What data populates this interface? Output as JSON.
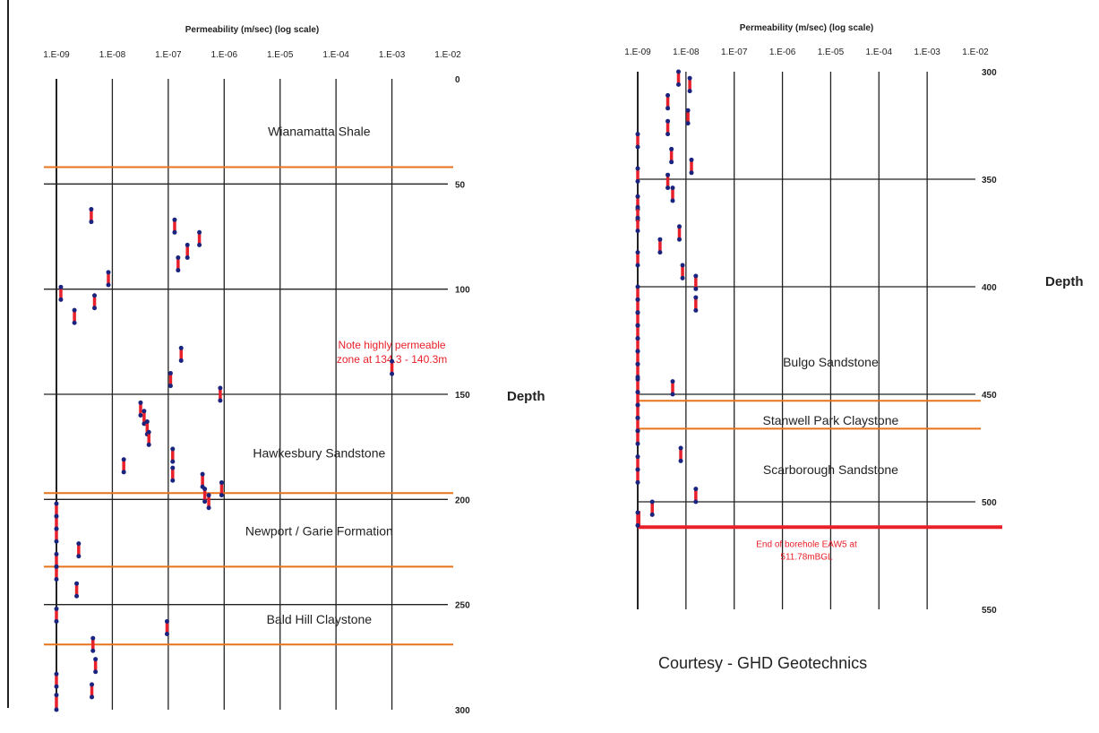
{
  "labels": {
    "depth_right": "Depth",
    "depth_left": "Depth",
    "credit": "Courtesy - GHD Geotechnics"
  },
  "colors": {
    "grid": "#222222",
    "boundary": "#e8731a",
    "test_bar": "#e8202a",
    "test_end": "#1a237e",
    "eoh": "#e8202a"
  },
  "chart_data": [
    {
      "type": "scatter",
      "panel": "left",
      "title": "Permeability (m/sec)   (log scale)",
      "x_scale": "log",
      "xlim": [
        1e-09,
        0.01
      ],
      "x_ticks": [
        "1.E-09",
        "1.E-08",
        "1.E-07",
        "1.E-06",
        "1.E-05",
        "1.E-04",
        "1.E-03",
        "1.E-02"
      ],
      "ylim": [
        0,
        300
      ],
      "y_inverted": true,
      "y_ticks": [
        0,
        50,
        100,
        150,
        200,
        250,
        300
      ],
      "grid": true,
      "y_grid": [
        50,
        100,
        150,
        200,
        250
      ],
      "formations": [
        {
          "name": "Wianamatta Shale",
          "label_depth": 25,
          "label_k": 5e-05
        },
        {
          "name": "Hawkesbury Sandstone",
          "label_depth": 178,
          "label_k": 5e-05
        },
        {
          "name": "Newport / Garie Formation",
          "label_depth": 215,
          "label_k": 5e-05
        },
        {
          "name": "Bald Hill Claystone",
          "label_depth": 257,
          "label_k": 5e-05
        }
      ],
      "boundaries": [
        42,
        197,
        232,
        269
      ],
      "annotation": {
        "lines": [
          "Note highly permeable",
          "zone at 134.3 - 140.3m"
        ],
        "k": 0.001,
        "depth": 118
      },
      "tests": [
        {
          "k": 4.2e-09,
          "top": 62,
          "bottom": 68
        },
        {
          "k": 1.3e-07,
          "top": 67,
          "bottom": 73
        },
        {
          "k": 3.6e-07,
          "top": 73,
          "bottom": 79
        },
        {
          "k": 2.2e-07,
          "top": 79,
          "bottom": 85
        },
        {
          "k": 1.5e-07,
          "top": 85,
          "bottom": 91
        },
        {
          "k": 8.5e-09,
          "top": 92,
          "bottom": 98
        },
        {
          "k": 1.2e-09,
          "top": 99,
          "bottom": 105
        },
        {
          "k": 4.8e-09,
          "top": 103,
          "bottom": 109
        },
        {
          "k": 2.1e-09,
          "top": 110,
          "bottom": 116
        },
        {
          "k": 1.7e-07,
          "top": 128,
          "bottom": 134
        },
        {
          "k": 0.001,
          "top": 134.3,
          "bottom": 140.3
        },
        {
          "k": 1.1e-07,
          "top": 140,
          "bottom": 146
        },
        {
          "k": 8.5e-07,
          "top": 147,
          "bottom": 153
        },
        {
          "k": 3.2e-08,
          "top": 154,
          "bottom": 160
        },
        {
          "k": 3.7e-08,
          "top": 158,
          "bottom": 164
        },
        {
          "k": 4.2e-08,
          "top": 163,
          "bottom": 169
        },
        {
          "k": 4.5e-08,
          "top": 168,
          "bottom": 174
        },
        {
          "k": 1.2e-07,
          "top": 176,
          "bottom": 182
        },
        {
          "k": 1.6e-08,
          "top": 181,
          "bottom": 187
        },
        {
          "k": 1.2e-07,
          "top": 185,
          "bottom": 191
        },
        {
          "k": 4.1e-07,
          "top": 188,
          "bottom": 194
        },
        {
          "k": 9e-07,
          "top": 192,
          "bottom": 198
        },
        {
          "k": 4.5e-07,
          "top": 195,
          "bottom": 201
        },
        {
          "k": 5.3e-07,
          "top": 198,
          "bottom": 204
        },
        {
          "k": 1e-09,
          "top": 202,
          "bottom": 208
        },
        {
          "k": 1e-09,
          "top": 208,
          "bottom": 214
        },
        {
          "k": 1e-09,
          "top": 214,
          "bottom": 220
        },
        {
          "k": 2.5e-09,
          "top": 221,
          "bottom": 227
        },
        {
          "k": 1e-09,
          "top": 226,
          "bottom": 232
        },
        {
          "k": 1e-09,
          "top": 232,
          "bottom": 238
        },
        {
          "k": 2.3e-09,
          "top": 240,
          "bottom": 246
        },
        {
          "k": 1e-09,
          "top": 252,
          "bottom": 258
        },
        {
          "k": 9.5e-08,
          "top": 258,
          "bottom": 264
        },
        {
          "k": 4.5e-09,
          "top": 266,
          "bottom": 272
        },
        {
          "k": 5e-09,
          "top": 276,
          "bottom": 282
        },
        {
          "k": 1e-09,
          "top": 283,
          "bottom": 289
        },
        {
          "k": 4.3e-09,
          "top": 288,
          "bottom": 294
        },
        {
          "k": 1e-09,
          "top": 293,
          "bottom": 300
        }
      ]
    },
    {
      "type": "scatter",
      "panel": "right",
      "title": "Permeability (m/sec)   (log scale)",
      "x_scale": "log",
      "xlim": [
        1e-09,
        0.01
      ],
      "x_ticks": [
        "1.E-09",
        "1.E-08",
        "1.E-07",
        "1.E-06",
        "1.E-05",
        "1.E-04",
        "1.E-03",
        "1.E-02"
      ],
      "ylim": [
        300,
        550
      ],
      "y_inverted": true,
      "y_ticks": [
        300,
        350,
        400,
        450,
        500,
        550
      ],
      "grid": true,
      "y_grid": [
        350,
        400,
        450,
        500
      ],
      "formations": [
        {
          "name": "Bulgo Sandstone",
          "label_depth": 435,
          "label_k": 1e-05
        },
        {
          "name": "Stanwell Park Claystone",
          "label_depth": 462,
          "label_k": 1e-05
        },
        {
          "name": "Scarborough Sandstone",
          "label_depth": 485,
          "label_k": 1e-05
        }
      ],
      "boundaries": [
        453,
        466
      ],
      "end_of_hole": {
        "depth": 511.78,
        "lines": [
          "End of borehole EAW5 at",
          "511.78mBGL"
        ]
      },
      "tests": [
        {
          "k": 7e-09,
          "top": 300,
          "bottom": 306
        },
        {
          "k": 1.2e-08,
          "top": 303,
          "bottom": 309
        },
        {
          "k": 4.2e-09,
          "top": 311,
          "bottom": 317
        },
        {
          "k": 1.1e-08,
          "top": 318,
          "bottom": 324
        },
        {
          "k": 4.2e-09,
          "top": 323,
          "bottom": 329
        },
        {
          "k": 1e-09,
          "top": 329,
          "bottom": 335
        },
        {
          "k": 5e-09,
          "top": 336,
          "bottom": 342
        },
        {
          "k": 1.3e-08,
          "top": 341,
          "bottom": 347
        },
        {
          "k": 1e-09,
          "top": 345,
          "bottom": 351
        },
        {
          "k": 4.2e-09,
          "top": 348,
          "bottom": 354
        },
        {
          "k": 5.3e-09,
          "top": 354,
          "bottom": 360
        },
        {
          "k": 1e-09,
          "top": 358,
          "bottom": 364
        },
        {
          "k": 1e-09,
          "top": 363,
          "bottom": 369
        },
        {
          "k": 1e-09,
          "top": 368,
          "bottom": 374
        },
        {
          "k": 7.3e-09,
          "top": 372,
          "bottom": 378
        },
        {
          "k": 2.9e-09,
          "top": 378,
          "bottom": 384
        },
        {
          "k": 1e-09,
          "top": 384,
          "bottom": 390
        },
        {
          "k": 8.5e-09,
          "top": 390,
          "bottom": 396
        },
        {
          "k": 1.6e-08,
          "top": 395,
          "bottom": 401
        },
        {
          "k": 1e-09,
          "top": 400,
          "bottom": 406
        },
        {
          "k": 1.6e-08,
          "top": 405,
          "bottom": 411
        },
        {
          "k": 1e-09,
          "top": 406,
          "bottom": 412
        },
        {
          "k": 1e-09,
          "top": 412,
          "bottom": 418
        },
        {
          "k": 1e-09,
          "top": 418,
          "bottom": 424
        },
        {
          "k": 1e-09,
          "top": 424,
          "bottom": 430
        },
        {
          "k": 1e-09,
          "top": 430,
          "bottom": 436
        },
        {
          "k": 1e-09,
          "top": 436,
          "bottom": 442
        },
        {
          "k": 5.3e-09,
          "top": 444,
          "bottom": 450
        },
        {
          "k": 1e-09,
          "top": 443,
          "bottom": 449
        },
        {
          "k": 1e-09,
          "top": 449,
          "bottom": 455
        },
        {
          "k": 1e-09,
          "top": 455,
          "bottom": 461
        },
        {
          "k": 1e-09,
          "top": 461,
          "bottom": 467
        },
        {
          "k": 1e-09,
          "top": 467,
          "bottom": 473
        },
        {
          "k": 7.8e-09,
          "top": 475,
          "bottom": 481
        },
        {
          "k": 1e-09,
          "top": 479,
          "bottom": 485
        },
        {
          "k": 1e-09,
          "top": 485,
          "bottom": 491
        },
        {
          "k": 1.6e-08,
          "top": 494,
          "bottom": 500
        },
        {
          "k": 2e-09,
          "top": 500,
          "bottom": 506
        },
        {
          "k": 1e-09,
          "top": 505,
          "bottom": 511
        }
      ]
    }
  ]
}
